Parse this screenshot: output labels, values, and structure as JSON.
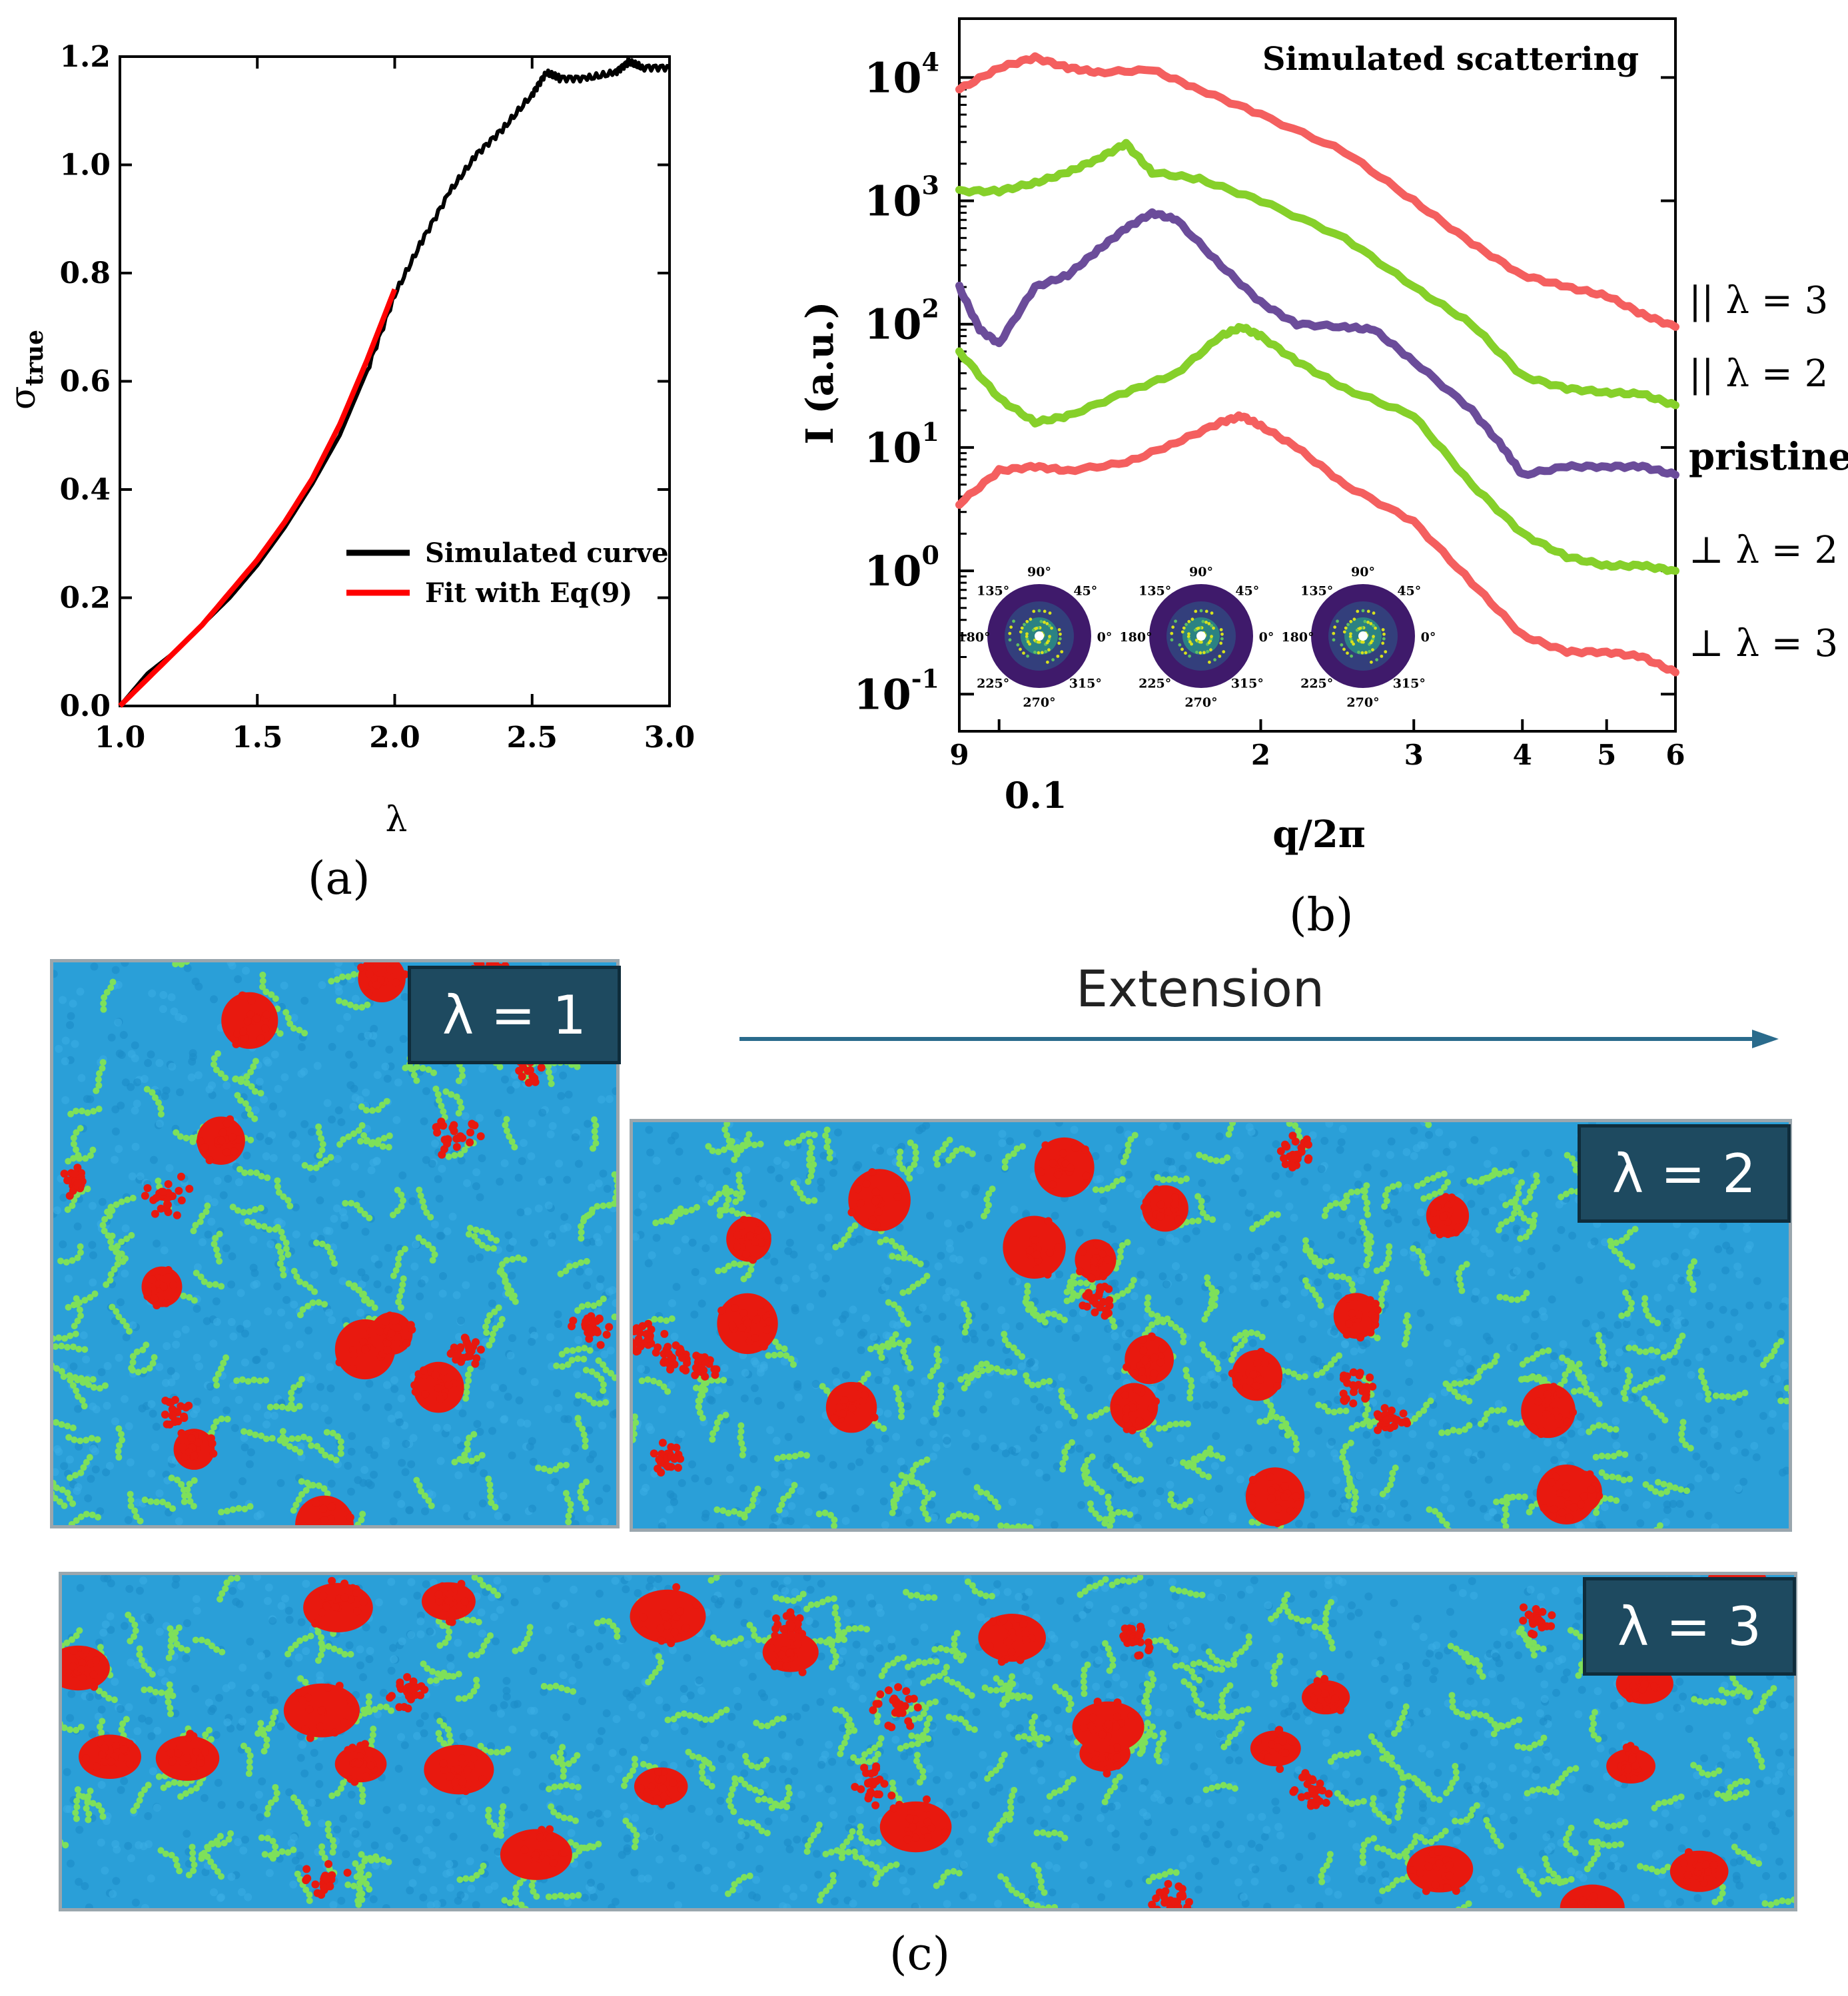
{
  "chart_data": [
    {
      "type": "line",
      "title": "",
      "xlabel": "λ",
      "ylabel": "σ_true",
      "ylabel_main": "σ",
      "ylabel_sub": "true",
      "xlim": [
        1.0,
        3.0
      ],
      "ylim": [
        0.0,
        1.2
      ],
      "xticks": [
        1.0,
        1.5,
        2.0,
        2.5,
        3.0
      ],
      "xtick_labels": [
        "1.0",
        "1.5",
        "2.0",
        "2.5",
        "3.0"
      ],
      "yticks": [
        0.0,
        0.2,
        0.4,
        0.6,
        0.8,
        1.0,
        1.2
      ],
      "ytick_labels": [
        "0.0",
        "0.2",
        "0.4",
        "0.6",
        "0.8",
        "1.0",
        "1.2"
      ],
      "legend_position": "lower-right",
      "series": [
        {
          "name": "Simulated curve",
          "color": "#000000",
          "x": [
            1.0,
            1.1,
            1.2,
            1.3,
            1.4,
            1.5,
            1.6,
            1.7,
            1.8,
            1.9,
            2.0,
            2.1,
            2.2,
            2.3,
            2.4,
            2.5,
            2.55,
            2.6,
            2.7,
            2.8,
            2.85,
            2.9,
            3.0
          ],
          "y": [
            0.0,
            0.06,
            0.1,
            0.15,
            0.2,
            0.26,
            0.33,
            0.41,
            0.5,
            0.62,
            0.76,
            0.86,
            0.95,
            1.02,
            1.07,
            1.13,
            1.17,
            1.16,
            1.16,
            1.17,
            1.19,
            1.18,
            1.18
          ]
        },
        {
          "name": "Fit with Eq(9)",
          "color": "#ff0000",
          "x": [
            1.0,
            1.1,
            1.2,
            1.3,
            1.4,
            1.5,
            1.6,
            1.7,
            1.8,
            1.9,
            2.0
          ],
          "y": [
            0.0,
            0.05,
            0.1,
            0.15,
            0.21,
            0.27,
            0.34,
            0.42,
            0.52,
            0.64,
            0.77
          ]
        }
      ]
    },
    {
      "type": "line",
      "title": "Simulated scattering",
      "xlabel": "q/2π",
      "ylabel": "I (a.u.)",
      "xscale": "log",
      "yscale": "log",
      "xlim": [
        0.09,
        0.6
      ],
      "ylim": [
        0.05,
        30000
      ],
      "xticks": [
        0.09,
        0.1,
        0.2,
        0.3,
        0.4,
        0.5,
        0.6
      ],
      "xtick_labels": [
        "9",
        "0.1",
        "2",
        "3",
        "4",
        "5",
        "6"
      ],
      "ytick_labels": [
        {
          "base": "10",
          "exp": "-1"
        },
        {
          "base": "10",
          "exp": "0"
        },
        {
          "base": "10",
          "exp": "1"
        },
        {
          "base": "10",
          "exp": "2"
        },
        {
          "base": "10",
          "exp": "3"
        },
        {
          "base": "10",
          "exp": "4"
        }
      ],
      "series": [
        {
          "name": "|| λ = 3",
          "sym": "||",
          "rest": "λ = 3",
          "color": "#f45f5f",
          "x": [
            0.09,
            0.1,
            0.11,
            0.12,
            0.13,
            0.15,
            0.17,
            0.2,
            0.25,
            0.3,
            0.35,
            0.4,
            0.45,
            0.5,
            0.55,
            0.6
          ],
          "y": [
            8000,
            12000,
            14500,
            12000,
            11000,
            11500,
            8000,
            5000,
            2500,
            1000,
            450,
            250,
            200,
            170,
            120,
            95
          ]
        },
        {
          "name": "|| λ = 2",
          "sym": "||",
          "rest": "λ = 2",
          "color": "#86d02a",
          "x": [
            0.09,
            0.1,
            0.11,
            0.12,
            0.13,
            0.14,
            0.15,
            0.17,
            0.2,
            0.25,
            0.3,
            0.35,
            0.4,
            0.45,
            0.5,
            0.55,
            0.6
          ],
          "y": [
            1200,
            1200,
            1400,
            1700,
            2200,
            2900,
            1700,
            1500,
            1000,
            500,
            200,
            100,
            38,
            30,
            28,
            27,
            22
          ]
        },
        {
          "name": "pristine",
          "sym": "",
          "rest": "pristine",
          "color": "#6b4c9a",
          "x": [
            0.09,
            0.095,
            0.1,
            0.11,
            0.12,
            0.13,
            0.14,
            0.15,
            0.16,
            0.18,
            0.2,
            0.22,
            0.25,
            0.27,
            0.3,
            0.35,
            0.38,
            0.4,
            0.45,
            0.5,
            0.55,
            0.6
          ],
          "y": [
            200,
            90,
            70,
            200,
            250,
            400,
            600,
            800,
            700,
            300,
            150,
            100,
            95,
            90,
            50,
            20,
            10,
            6,
            7,
            7,
            7,
            6
          ]
        },
        {
          "name": "⊥ λ = 2",
          "sym": "⊥",
          "rest": "λ = 2",
          "color": "#86d02a",
          "x": [
            0.09,
            0.1,
            0.11,
            0.12,
            0.14,
            0.16,
            0.18,
            0.19,
            0.2,
            0.22,
            0.25,
            0.3,
            0.35,
            0.4,
            0.45,
            0.5,
            0.55,
            0.6
          ],
          "y": [
            60,
            25,
            16,
            18,
            28,
            40,
            80,
            95,
            80,
            50,
            30,
            18,
            5,
            2,
            1.3,
            1.1,
            1.1,
            1.0
          ]
        },
        {
          "name": "⊥ λ = 3",
          "sym": "⊥",
          "rest": "λ = 3",
          "color": "#f45f5f",
          "x": [
            0.09,
            0.1,
            0.11,
            0.12,
            0.14,
            0.16,
            0.18,
            0.19,
            0.2,
            0.22,
            0.25,
            0.3,
            0.35,
            0.4,
            0.45,
            0.5,
            0.55,
            0.6
          ],
          "y": [
            3.5,
            6.5,
            7,
            6.5,
            7.5,
            11,
            16,
            18,
            15,
            10,
            5,
            2.5,
            0.8,
            0.3,
            0.22,
            0.22,
            0.2,
            0.15
          ]
        }
      ],
      "insets": [
        {
          "angle_labels": [
            "90°",
            "45°",
            "0°",
            "315°",
            "270°",
            "225°",
            "180°",
            "135°"
          ]
        },
        {
          "angle_labels": [
            "90°",
            "45°",
            "0°",
            "315°",
            "270°",
            "225°",
            "180°",
            "135°"
          ]
        },
        {
          "angle_labels": [
            "90°",
            "45°",
            "0°",
            "315°",
            "270°",
            "225°",
            "180°",
            "135°"
          ]
        }
      ]
    }
  ],
  "panels": {
    "a": "(a)",
    "b": "(b)",
    "c": "(c)"
  },
  "simulation": {
    "extension_label": "Extension",
    "boxes": [
      {
        "label": "λ = 1"
      },
      {
        "label": "λ = 2"
      },
      {
        "label": "λ = 3"
      }
    ],
    "colors": {
      "matrix": "#2a9fd8",
      "chains": "#7ee05a",
      "domains": "#e8190f",
      "arrow": "#2a6b8c"
    }
  }
}
